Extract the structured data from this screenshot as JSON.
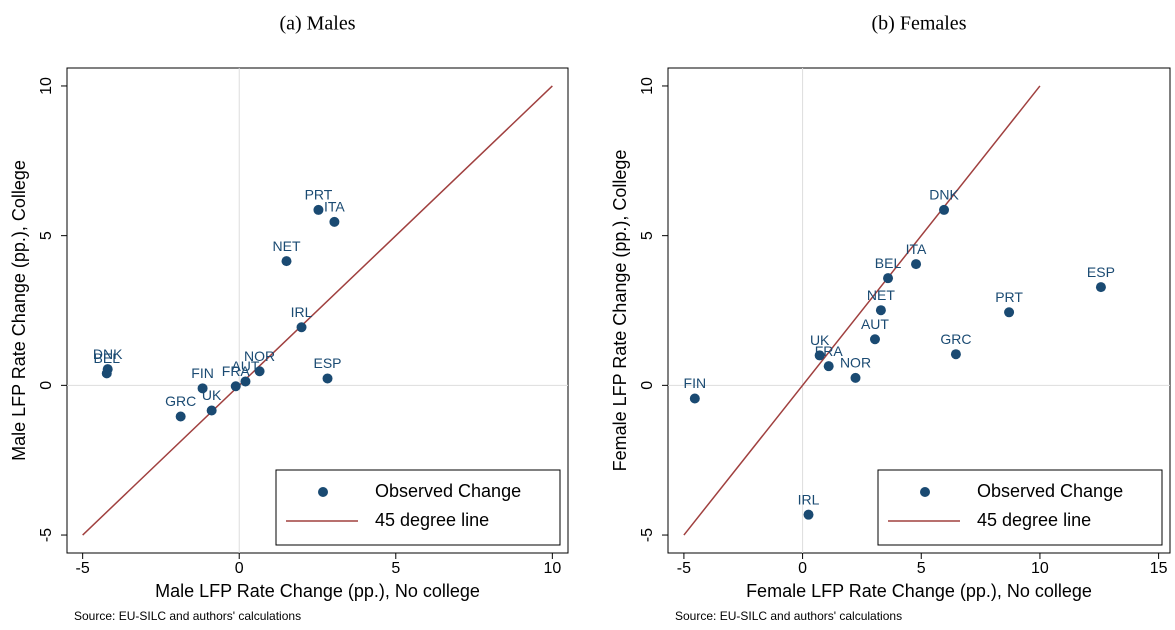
{
  "chart_data": [
    {
      "type": "scatter",
      "title": "(a) Males",
      "x_label": "Male LFP Rate Change (pp.), No college",
      "y_label": "Male LFP Rate Change (pp.), College",
      "source": "Source: EU-SILC and authors' calculations",
      "series": [
        {
          "name": "Observed Change",
          "color": "#1a4a72",
          "labels": [
            "DNK",
            "BEL",
            "PRT",
            "ITA",
            "NET",
            "IRL",
            "ESP",
            "NOR",
            "AUT",
            "FRA",
            "FIN",
            "UK",
            "GRC"
          ],
          "x": [
            -4.2,
            -4.23,
            2.53,
            3.04,
            1.51,
            1.99,
            2.82,
            0.65,
            0.2,
            -0.11,
            -1.17,
            -0.88,
            -1.87
          ],
          "y": [
            0.54,
            0.4,
            5.86,
            5.46,
            4.15,
            1.94,
            0.23,
            0.47,
            0.13,
            -0.03,
            -0.1,
            -0.84,
            -1.04
          ]
        }
      ],
      "line": {
        "name": "45 degree line",
        "color": "#a0403f",
        "x": [
          -5,
          10
        ],
        "y": [
          -5,
          10
        ]
      },
      "refline_x": 0,
      "refline_y": 0,
      "xlim": [
        -5.5,
        10.5
      ],
      "ylim": [
        -5.6,
        10.6
      ],
      "xticks": [
        -5,
        0,
        5,
        10
      ],
      "yticks": [
        -5,
        0,
        5,
        10
      ],
      "legend": "lower right"
    },
    {
      "type": "scatter",
      "title": "(b) Females",
      "x_label": "Female LFP Rate Change (pp.), No college",
      "y_label": "Female LFP Rate Change (pp.), College",
      "source": "Source: EU-SILC and authors' calculations",
      "series": [
        {
          "name": "Observed Change",
          "color": "#1a4a72",
          "labels": [
            "FIN",
            "IRL",
            "UK",
            "FRA",
            "NOR",
            "AUT",
            "NET",
            "BEL",
            "ITA",
            "DNK",
            "PRT",
            "ESP",
            "GRC"
          ],
          "x": [
            -4.54,
            0.25,
            0.72,
            1.1,
            2.23,
            3.05,
            3.3,
            3.6,
            4.78,
            5.96,
            8.7,
            12.57,
            6.46
          ],
          "y": [
            -0.44,
            -4.32,
            1.0,
            0.64,
            0.25,
            1.54,
            2.51,
            3.58,
            4.05,
            5.86,
            2.44,
            3.28,
            1.04
          ]
        }
      ],
      "line": {
        "name": "45 degree line",
        "color": "#a0403f",
        "x": [
          -5,
          10
        ],
        "y": [
          -5,
          10
        ]
      },
      "refline_x": 0,
      "refline_y": 0,
      "xlim": [
        -5.67,
        15.48
      ],
      "ylim": [
        -5.6,
        10.6
      ],
      "xticks": [
        -5,
        0,
        5,
        10,
        15
      ],
      "yticks": [
        -5,
        0,
        5,
        10
      ],
      "legend": "lower right"
    }
  ]
}
